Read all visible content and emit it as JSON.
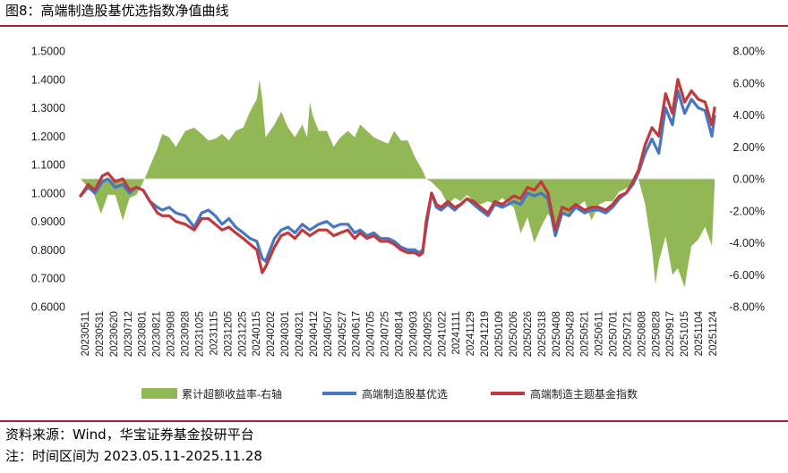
{
  "title": "图8：高端制造股基优选指数净值曲线",
  "source_note": "资料来源：Wind，华宝证券基金投研平台",
  "period_note": "注：时间区间为 2023.05.11-2025.11.28",
  "colors": {
    "area": "#92b755",
    "line1": "#4677c0",
    "line2": "#c0393e",
    "rule": "#b0252d"
  },
  "chart_data": {
    "type": "line",
    "x_type": "date",
    "left_axis": {
      "range": [
        0.6,
        1.5
      ],
      "ticks": [
        "0.6000",
        "0.7000",
        "0.8000",
        "0.9000",
        "1.0000",
        "1.1000",
        "1.2000",
        "1.3000",
        "1.4000",
        "1.5000"
      ]
    },
    "right_axis": {
      "range": [
        -8,
        8
      ],
      "ticks": [
        "-8.00%",
        "-6.00%",
        "-4.00%",
        "-2.00%",
        "0.00%",
        "2.00%",
        "4.00%",
        "6.00%",
        "8.00%"
      ]
    },
    "x_tick_labels": [
      "20230511",
      "20230531",
      "20230620",
      "20230712",
      "20230801",
      "20230821",
      "20230908",
      "20230928",
      "20231025",
      "20231115",
      "20231205",
      "20231225",
      "20240115",
      "20240202",
      "20240301",
      "20240321",
      "20240412",
      "20240507",
      "20240527",
      "20240617",
      "20240705",
      "20240725",
      "20240814",
      "20240903",
      "20240925",
      "20241022",
      "20241111",
      "20241129",
      "20241219",
      "20250109",
      "20250206",
      "20250226",
      "20250318",
      "20250408",
      "20250428",
      "20250521",
      "20250611",
      "20250701",
      "20250721",
      "20250808",
      "20250828",
      "20250917",
      "20251015",
      "20251104",
      "20251124"
    ],
    "legend": [
      "累计超额收益率-右轴",
      "高端制造股基优选",
      "高端制造主题基金指数"
    ],
    "series": [
      {
        "name": "累计超额收益率-右轴",
        "kind": "area",
        "axis": "right",
        "x": [
          "2023-05-11",
          "2023-05-31",
          "2023-06-10",
          "2023-06-20",
          "2023-07-01",
          "2023-07-12",
          "2023-07-22",
          "2023-08-01",
          "2023-08-11",
          "2023-08-21",
          "2023-08-31",
          "2023-09-08",
          "2023-09-18",
          "2023-09-28",
          "2023-10-12",
          "2023-10-25",
          "2023-11-05",
          "2023-11-15",
          "2023-11-25",
          "2023-12-05",
          "2023-12-15",
          "2023-12-25",
          "2024-01-05",
          "2024-01-15",
          "2024-01-25",
          "2024-01-29",
          "2024-02-02",
          "2024-02-07",
          "2024-02-20",
          "2024-03-01",
          "2024-03-11",
          "2024-03-21",
          "2024-04-01",
          "2024-04-08",
          "2024-04-12",
          "2024-04-16",
          "2024-04-25",
          "2024-05-07",
          "2024-05-17",
          "2024-05-27",
          "2024-06-07",
          "2024-06-17",
          "2024-06-25",
          "2024-07-05",
          "2024-07-15",
          "2024-07-25",
          "2024-08-05",
          "2024-08-14",
          "2024-08-24",
          "2024-09-03",
          "2024-09-13",
          "2024-09-25",
          "2024-09-30",
          "2024-10-08",
          "2024-10-22",
          "2024-11-01",
          "2024-11-11",
          "2024-11-20",
          "2024-11-29",
          "2024-12-09",
          "2024-12-19",
          "2024-12-30",
          "2025-01-09",
          "2025-01-20",
          "2025-02-06",
          "2025-02-16",
          "2025-02-26",
          "2025-03-08",
          "2025-03-18",
          "2025-03-28",
          "2025-04-08",
          "2025-04-18",
          "2025-04-28",
          "2025-05-08",
          "2025-05-21",
          "2025-05-31",
          "2025-06-11",
          "2025-06-21",
          "2025-07-01",
          "2025-07-11",
          "2025-07-21",
          "2025-07-31",
          "2025-08-08",
          "2025-08-18",
          "2025-08-28",
          "2025-09-02",
          "2025-09-07",
          "2025-09-17",
          "2025-09-27",
          "2025-10-05",
          "2025-10-15",
          "2025-10-20",
          "2025-10-25",
          "2025-11-04",
          "2025-11-14",
          "2025-11-24",
          "2025-11-28"
        ],
        "y": [
          0.0,
          -1.0,
          -2.2,
          -1.0,
          -1.0,
          -2.6,
          -1.2,
          -1.0,
          -0.2,
          0.8,
          1.8,
          2.8,
          2.6,
          2.0,
          3.0,
          3.2,
          2.8,
          2.4,
          2.5,
          2.8,
          2.4,
          3.0,
          3.2,
          4.2,
          5.0,
          6.2,
          5.0,
          2.6,
          3.4,
          4.2,
          3.2,
          2.6,
          3.4,
          2.6,
          4.8,
          4.0,
          3.0,
          3.0,
          2.0,
          2.6,
          3.0,
          2.6,
          3.4,
          3.0,
          2.6,
          2.4,
          2.2,
          3.0,
          2.4,
          2.4,
          1.4,
          0.5,
          0.0,
          -0.2,
          -0.8,
          -1.6,
          -1.2,
          -1.4,
          -1.0,
          -1.4,
          -1.6,
          -1.4,
          -1.6,
          -1.2,
          -1.8,
          -3.4,
          -2.4,
          -4.0,
          -3.0,
          -2.2,
          -2.8,
          -2.2,
          -2.4,
          -1.8,
          -1.4,
          -2.6,
          -1.6,
          -1.4,
          -1.4,
          -0.8,
          -0.6,
          -0.2,
          0.0,
          -1.6,
          -4.4,
          -6.6,
          -5.2,
          -3.6,
          -6.0,
          -5.6,
          -6.8,
          -5.4,
          -4.2,
          -3.8,
          -3.0,
          -4.2,
          -0.4
        ]
      },
      {
        "name": "高端制造股基优选",
        "kind": "line",
        "axis": "left",
        "x": [
          "2023-05-11",
          "2023-05-22",
          "2023-06-01",
          "2023-06-12",
          "2023-06-20",
          "2023-07-01",
          "2023-07-12",
          "2023-07-22",
          "2023-08-01",
          "2023-08-11",
          "2023-08-21",
          "2023-09-01",
          "2023-09-08",
          "2023-09-18",
          "2023-09-28",
          "2023-10-12",
          "2023-10-25",
          "2023-11-05",
          "2023-11-15",
          "2023-11-25",
          "2023-12-05",
          "2023-12-15",
          "2023-12-25",
          "2024-01-05",
          "2024-01-15",
          "2024-01-25",
          "2024-02-02",
          "2024-02-07",
          "2024-02-20",
          "2024-03-01",
          "2024-03-11",
          "2024-03-21",
          "2024-04-01",
          "2024-04-12",
          "2024-04-25",
          "2024-05-07",
          "2024-05-17",
          "2024-05-27",
          "2024-06-07",
          "2024-06-17",
          "2024-06-25",
          "2024-07-05",
          "2024-07-15",
          "2024-07-25",
          "2024-08-05",
          "2024-08-14",
          "2024-08-24",
          "2024-09-03",
          "2024-09-13",
          "2024-09-20",
          "2024-09-25",
          "2024-09-30",
          "2024-10-08",
          "2024-10-15",
          "2024-10-22",
          "2024-11-01",
          "2024-11-11",
          "2024-11-20",
          "2024-11-29",
          "2024-12-09",
          "2024-12-19",
          "2024-12-30",
          "2025-01-09",
          "2025-01-20",
          "2025-02-06",
          "2025-02-16",
          "2025-02-26",
          "2025-03-08",
          "2025-03-18",
          "2025-03-28",
          "2025-04-08",
          "2025-04-18",
          "2025-04-28",
          "2025-05-08",
          "2025-05-21",
          "2025-05-31",
          "2025-06-11",
          "2025-06-21",
          "2025-07-01",
          "2025-07-11",
          "2025-07-21",
          "2025-07-31",
          "2025-08-08",
          "2025-08-18",
          "2025-08-28",
          "2025-09-07",
          "2025-09-17",
          "2025-09-27",
          "2025-10-05",
          "2025-10-15",
          "2025-10-25",
          "2025-11-04",
          "2025-11-14",
          "2025-11-24",
          "2025-11-28"
        ],
        "y": [
          0.99,
          1.02,
          1.0,
          1.04,
          1.05,
          1.02,
          1.03,
          1.0,
          1.02,
          1.01,
          0.97,
          0.95,
          0.94,
          0.95,
          0.93,
          0.92,
          0.88,
          0.93,
          0.94,
          0.92,
          0.89,
          0.91,
          0.88,
          0.86,
          0.84,
          0.83,
          0.77,
          0.76,
          0.84,
          0.87,
          0.88,
          0.86,
          0.89,
          0.87,
          0.89,
          0.9,
          0.88,
          0.89,
          0.89,
          0.86,
          0.87,
          0.85,
          0.86,
          0.84,
          0.84,
          0.83,
          0.81,
          0.8,
          0.8,
          0.79,
          0.8,
          0.88,
          1.0,
          0.95,
          0.94,
          0.96,
          0.94,
          0.96,
          0.98,
          0.96,
          0.94,
          0.92,
          0.96,
          0.95,
          0.97,
          0.96,
          1.0,
          0.99,
          1.0,
          0.98,
          0.85,
          0.93,
          0.92,
          0.95,
          0.93,
          0.94,
          0.94,
          0.93,
          0.95,
          0.98,
          1.0,
          1.03,
          1.07,
          1.14,
          1.19,
          1.14,
          1.3,
          1.24,
          1.36,
          1.28,
          1.33,
          1.3,
          1.29,
          1.2,
          1.27
        ]
      },
      {
        "name": "高端制造主题基金指数",
        "kind": "line",
        "axis": "left",
        "x": [
          "2023-05-11",
          "2023-05-22",
          "2023-06-01",
          "2023-06-12",
          "2023-06-20",
          "2023-07-01",
          "2023-07-12",
          "2023-07-22",
          "2023-08-01",
          "2023-08-11",
          "2023-08-21",
          "2023-09-01",
          "2023-09-08",
          "2023-09-18",
          "2023-09-28",
          "2023-10-12",
          "2023-10-25",
          "2023-11-05",
          "2023-11-15",
          "2023-11-25",
          "2023-12-05",
          "2023-12-15",
          "2023-12-25",
          "2024-01-05",
          "2024-01-15",
          "2024-01-25",
          "2024-02-02",
          "2024-02-07",
          "2024-02-20",
          "2024-03-01",
          "2024-03-11",
          "2024-03-21",
          "2024-04-01",
          "2024-04-12",
          "2024-04-25",
          "2024-05-07",
          "2024-05-17",
          "2024-05-27",
          "2024-06-07",
          "2024-06-17",
          "2024-06-25",
          "2024-07-05",
          "2024-07-15",
          "2024-07-25",
          "2024-08-05",
          "2024-08-14",
          "2024-08-24",
          "2024-09-03",
          "2024-09-13",
          "2024-09-20",
          "2024-09-25",
          "2024-09-30",
          "2024-10-08",
          "2024-10-15",
          "2024-10-22",
          "2024-11-01",
          "2024-11-11",
          "2024-11-20",
          "2024-11-29",
          "2024-12-09",
          "2024-12-19",
          "2024-12-30",
          "2025-01-09",
          "2025-01-20",
          "2025-02-06",
          "2025-02-16",
          "2025-02-26",
          "2025-03-08",
          "2025-03-18",
          "2025-03-28",
          "2025-04-08",
          "2025-04-18",
          "2025-04-28",
          "2025-05-08",
          "2025-05-21",
          "2025-05-31",
          "2025-06-11",
          "2025-06-21",
          "2025-07-01",
          "2025-07-11",
          "2025-07-21",
          "2025-07-31",
          "2025-08-08",
          "2025-08-18",
          "2025-08-28",
          "2025-09-07",
          "2025-09-17",
          "2025-09-27",
          "2025-10-05",
          "2025-10-15",
          "2025-10-25",
          "2025-11-04",
          "2025-11-14",
          "2025-11-24",
          "2025-11-28"
        ],
        "y": [
          0.99,
          1.03,
          1.01,
          1.06,
          1.07,
          1.04,
          1.05,
          1.01,
          1.02,
          1.01,
          0.97,
          0.93,
          0.92,
          0.92,
          0.9,
          0.89,
          0.87,
          0.91,
          0.91,
          0.89,
          0.87,
          0.88,
          0.86,
          0.84,
          0.82,
          0.8,
          0.72,
          0.74,
          0.81,
          0.85,
          0.86,
          0.84,
          0.87,
          0.85,
          0.87,
          0.87,
          0.85,
          0.86,
          0.87,
          0.84,
          0.86,
          0.84,
          0.85,
          0.83,
          0.83,
          0.82,
          0.8,
          0.79,
          0.79,
          0.78,
          0.79,
          0.9,
          1.0,
          0.96,
          0.95,
          0.97,
          0.95,
          0.96,
          0.98,
          0.97,
          0.95,
          0.93,
          0.97,
          0.96,
          0.99,
          0.98,
          1.02,
          1.01,
          1.04,
          1.0,
          0.87,
          0.95,
          0.94,
          0.96,
          0.94,
          0.95,
          0.95,
          0.94,
          0.96,
          0.99,
          1.0,
          1.04,
          1.08,
          1.17,
          1.23,
          1.2,
          1.35,
          1.28,
          1.4,
          1.32,
          1.36,
          1.33,
          1.32,
          1.24,
          1.3
        ]
      }
    ]
  }
}
